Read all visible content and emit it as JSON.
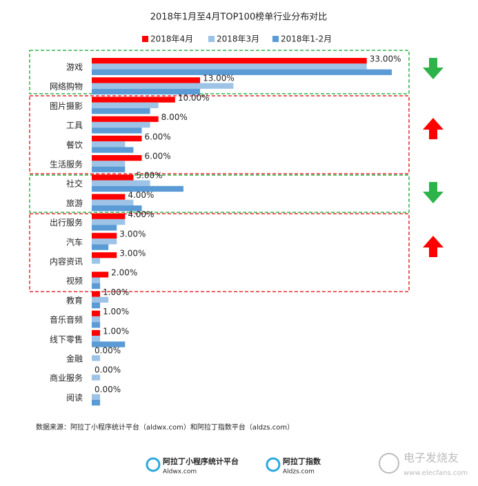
{
  "chart_data": {
    "type": "bar",
    "orientation": "horizontal",
    "title": "2018年1月至4月TOP100榜单行业分布对比",
    "categories": [
      "游戏",
      "网络购物",
      "图片摄影",
      "工具",
      "餐饮",
      "生活服务",
      "社交",
      "旅游",
      "出行服务",
      "汽车",
      "内容资讯",
      "视频",
      "教育",
      "音乐音频",
      "线下零售",
      "金融",
      "商业服务",
      "阅读"
    ],
    "series": [
      {
        "name": "2018年4月",
        "color": "#ff0000",
        "values": [
          33,
          13,
          10,
          8,
          6,
          6,
          5,
          4,
          4,
          3,
          3,
          2,
          1,
          1,
          1,
          0,
          0,
          0
        ],
        "value_labels": [
          "33.00%",
          "13.00%",
          "10.00%",
          "8.00%",
          "6.00%",
          "6.00%",
          "5.00%",
          "4.00%",
          "4.00%",
          "3.00%",
          "3.00%",
          "2.00%",
          "1.00%",
          "1.00%",
          "1.00%",
          "0.00%",
          "0.00%",
          "0.00%"
        ]
      },
      {
        "name": "2018年3月",
        "color": "#9dc3e6",
        "values": [
          33,
          17,
          8,
          7,
          4,
          4,
          7,
          5,
          4,
          3,
          1,
          1,
          2,
          1,
          1,
          1,
          1,
          1
        ]
      },
      {
        "name": "2018年1-2月",
        "color": "#5b9bd5",
        "values": [
          36,
          13,
          7,
          6,
          5,
          4,
          11,
          6,
          3,
          2,
          0,
          1,
          1,
          1,
          4,
          0,
          0,
          1
        ]
      }
    ]
  },
  "source": "数据来源：阿拉丁小程序统计平台（aldwx.com）和阿拉丁指数平台（aldzs.com）",
  "logos": [
    {
      "name": "阿拉丁小程序统计平台",
      "url": "Aldwx.com"
    },
    {
      "name": "阿拉丁指数",
      "url": "Aldzs.com"
    }
  ],
  "watermark": {
    "name": "电子发烧友",
    "url": "www.elecfans.com"
  }
}
